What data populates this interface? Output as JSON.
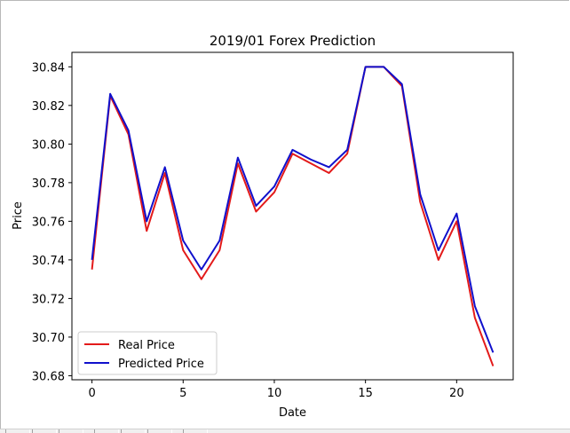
{
  "chart_data": {
    "type": "line",
    "title": "2019/01 Forex Prediction",
    "xlabel": "Date",
    "ylabel": "Price",
    "xlim": [
      -1.1,
      23.1
    ],
    "ylim": [
      30.6779,
      30.8475
    ],
    "xticks": [
      0,
      5,
      10,
      15,
      20
    ],
    "xtick_labels": [
      "0",
      "5",
      "10",
      "15",
      "20"
    ],
    "yticks": [
      30.68,
      30.7,
      30.72,
      30.74,
      30.76,
      30.78,
      30.8,
      30.82,
      30.84
    ],
    "ytick_labels": [
      "30.68",
      "30.70",
      "30.72",
      "30.74",
      "30.76",
      "30.78",
      "30.80",
      "30.82",
      "30.84"
    ],
    "grid": false,
    "legend_position": "bottom-left",
    "x": [
      0,
      1,
      2,
      3,
      4,
      5,
      6,
      7,
      8,
      9,
      10,
      11,
      12,
      13,
      14,
      15,
      16,
      17,
      18,
      19,
      20,
      21,
      22
    ],
    "series": [
      {
        "name": "Real Price",
        "color": "#e31a1a",
        "values": [
          30.735,
          30.825,
          30.805,
          30.755,
          30.785,
          30.745,
          30.73,
          30.745,
          30.79,
          30.765,
          30.775,
          30.795,
          30.79,
          30.785,
          30.795,
          30.84,
          30.84,
          30.83,
          30.77,
          30.74,
          30.76,
          30.71,
          30.685
        ]
      },
      {
        "name": "Predicted Price",
        "color": "#1010cc",
        "values": [
          30.74,
          30.826,
          30.807,
          30.76,
          30.788,
          30.75,
          30.735,
          30.75,
          30.793,
          30.768,
          30.778,
          30.797,
          30.792,
          30.788,
          30.797,
          30.84,
          30.84,
          30.831,
          30.774,
          30.745,
          30.764,
          30.716,
          30.692
        ]
      }
    ]
  }
}
